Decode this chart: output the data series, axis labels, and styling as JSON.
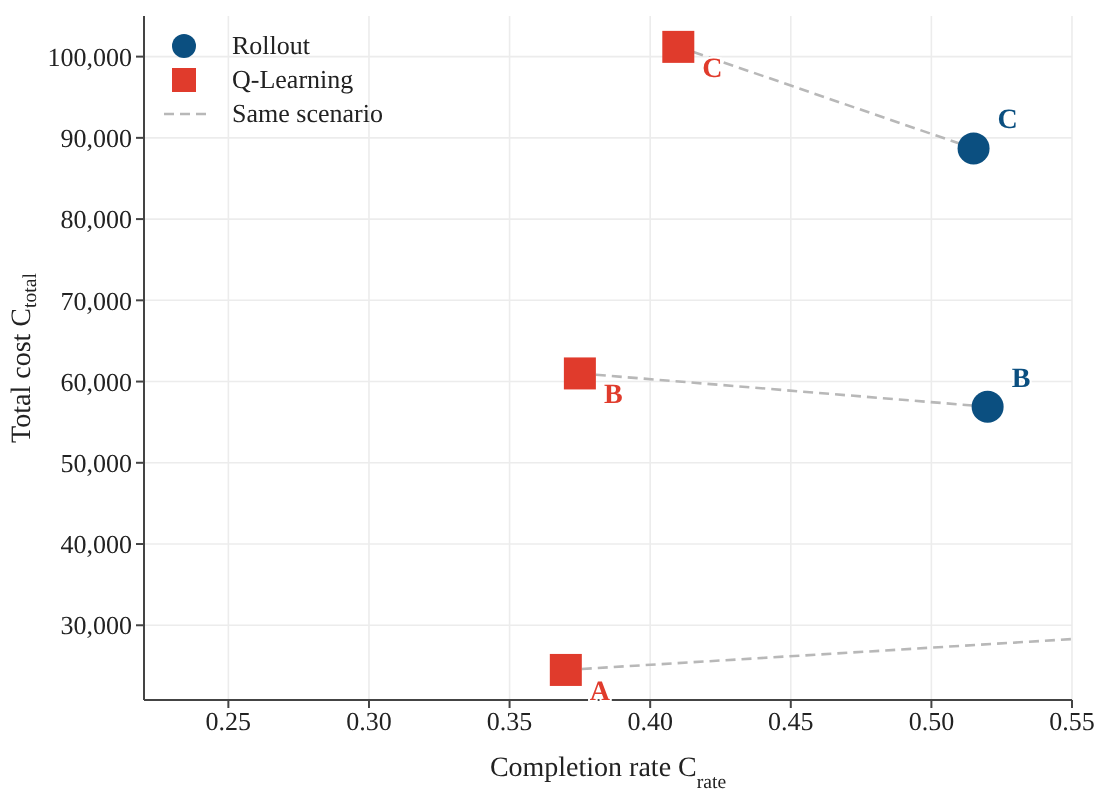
{
  "chart_data": {
    "type": "scatter",
    "xlabel": "Completion rate  C$_{rate}$",
    "ylabel": "Total cost  C$_{total}$",
    "xlim": [
      0.22,
      0.55
    ],
    "ylim": [
      20800,
      105000
    ],
    "xticks": [
      {
        "value": 0.25,
        "label": "0.25"
      },
      {
        "value": 0.3,
        "label": "0.30"
      },
      {
        "value": 0.35,
        "label": "0.35"
      },
      {
        "value": 0.4,
        "label": "0.40"
      },
      {
        "value": 0.45,
        "label": "0.45"
      },
      {
        "value": 0.5,
        "label": "0.50"
      },
      {
        "value": 0.55,
        "label": "0.55"
      }
    ],
    "yticks": [
      {
        "value": 30000,
        "label": "30,000"
      },
      {
        "value": 40000,
        "label": "40,000"
      },
      {
        "value": 50000,
        "label": "50,000"
      },
      {
        "value": 60000,
        "label": "60,000"
      },
      {
        "value": 70000,
        "label": "70,000"
      },
      {
        "value": 80000,
        "label": "80,000"
      },
      {
        "value": 90000,
        "label": "90,000"
      },
      {
        "value": 100000,
        "label": "100,000"
      }
    ],
    "grid": true,
    "legend": "top left",
    "series": [
      {
        "name": "Same scenario",
        "type": "line",
        "line_style": "dashed",
        "marker": "none",
        "color": "#b8b8b8",
        "x": [
          0.41,
          0.515
        ],
        "values": [
          101200,
          88700
        ]
      },
      {
        "type": "line",
        "line_style": "dashed",
        "marker": "none",
        "color": "#b8b8b8",
        "x": [
          0.375,
          0.52
        ],
        "values": [
          61000,
          56900
        ]
      },
      {
        "type": "line",
        "line_style": "dashed",
        "marker": "none",
        "color": "#b8b8b8",
        "x": [
          0.37,
          0.55
        ],
        "values": [
          24500,
          28300
        ]
      },
      {
        "name": "Rollout",
        "marker": "circle",
        "color": "#0b4f80",
        "x": [
          0.515,
          0.52
        ],
        "values": [
          88700,
          56900
        ],
        "value_labels": [
          "C",
          "B"
        ]
      },
      {
        "name": "Q-Learning",
        "marker": "square",
        "color": "#e03b2c",
        "x": [
          0.41,
          0.375,
          0.37
        ],
        "values": [
          101200,
          61000,
          24500
        ],
        "value_labels": [
          "C",
          "B",
          "A"
        ]
      }
    ]
  }
}
